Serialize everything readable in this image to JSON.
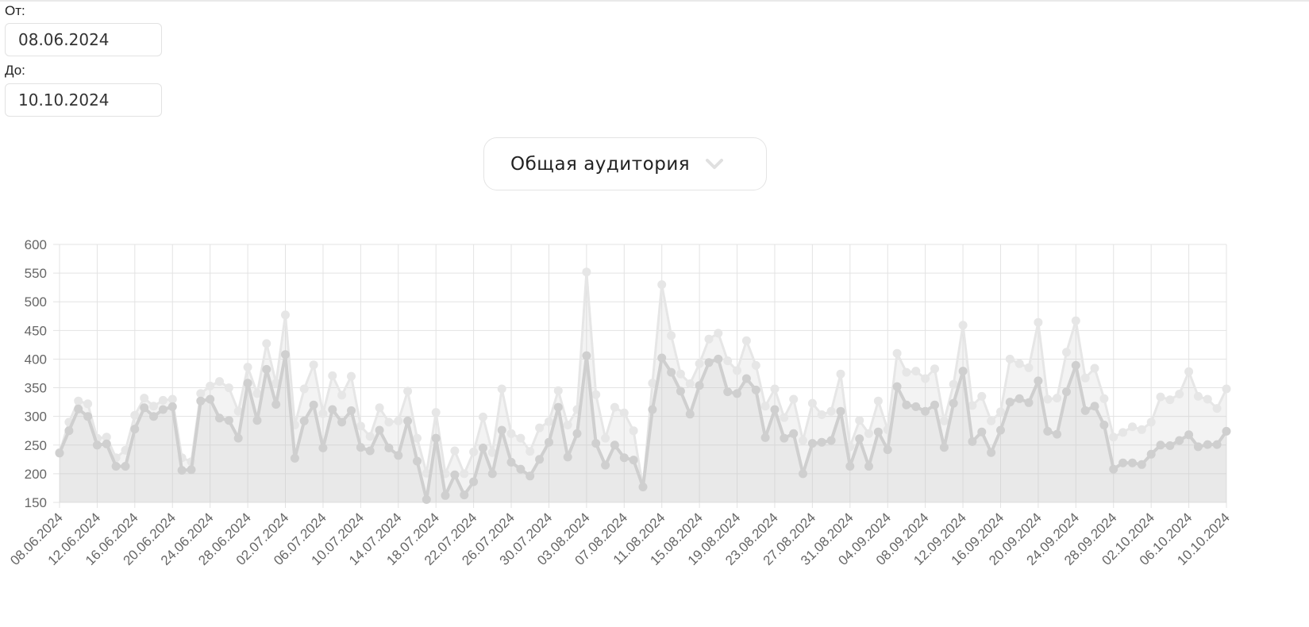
{
  "filters": {
    "from_label": "От:",
    "from_value": "08.06.2024",
    "to_label": "До:",
    "to_value": "10.10.2024"
  },
  "audience_select": {
    "selected": "Общая аудитория",
    "icon": "chevron-down-icon"
  },
  "chart_data": {
    "type": "area",
    "grid": true,
    "ylim": [
      150,
      600
    ],
    "yticks": [
      150,
      200,
      250,
      300,
      350,
      400,
      450,
      500,
      550,
      600
    ],
    "start_date": "2024-06-08",
    "xticks": [
      "08.06.2024",
      "12.06.2024",
      "16.06.2024",
      "20.06.2024",
      "24.06.2024",
      "28.06.2024",
      "02.07.2024",
      "06.07.2024",
      "10.07.2024",
      "14.07.2024",
      "18.07.2024",
      "22.07.2024",
      "26.07.2024",
      "30.07.2024",
      "03.08.2024",
      "07.08.2024",
      "11.08.2024",
      "15.08.2024",
      "19.08.2024",
      "23.08.2024",
      "27.08.2024",
      "31.08.2024",
      "04.09.2024",
      "08.09.2024",
      "12.09.2024",
      "16.09.2024",
      "20.09.2024",
      "24.09.2024",
      "28.09.2024",
      "02.10.2024",
      "06.10.2024",
      "10.10.2024"
    ],
    "series": [
      {
        "color": "#e6e6e6",
        "values": [
          237,
          290,
          327,
          322,
          262,
          264,
          228,
          241,
          302,
          332,
          318,
          328,
          330,
          228,
          221,
          340,
          353,
          361,
          350,
          309,
          386,
          340,
          427,
          358,
          477,
          285,
          348,
          390,
          305,
          371,
          337,
          370,
          283,
          265,
          315,
          290,
          292,
          344,
          262,
          201,
          307,
          200,
          240,
          200,
          238,
          299,
          237,
          348,
          270,
          262,
          239,
          280,
          291,
          345,
          285,
          312,
          552,
          338,
          262,
          316,
          306,
          275,
          176,
          358,
          530,
          441,
          374,
          357,
          392,
          435,
          445,
          397,
          380,
          432,
          389,
          318,
          348,
          298,
          330,
          258,
          323,
          303,
          309,
          374,
          247,
          293,
          270,
          327,
          277,
          410,
          377,
          379,
          366,
          383,
          292,
          356,
          459,
          319,
          335,
          292,
          308,
          400,
          392,
          385,
          464,
          330,
          332,
          412,
          467,
          367,
          384,
          331,
          264,
          272,
          282,
          277,
          290,
          334,
          329,
          339,
          378,
          335,
          330,
          314,
          348
        ]
      },
      {
        "color": "#cfcfcf",
        "values": [
          236,
          275,
          313,
          300,
          250,
          252,
          213,
          213,
          278,
          315,
          300,
          312,
          317,
          206,
          207,
          327,
          330,
          297,
          293,
          262,
          358,
          293,
          382,
          321,
          408,
          227,
          292,
          320,
          245,
          312,
          290,
          310,
          246,
          240,
          276,
          245,
          232,
          292,
          222,
          155,
          262,
          162,
          198,
          163,
          186,
          245,
          200,
          276,
          220,
          208,
          196,
          225,
          255,
          316,
          229,
          270,
          406,
          253,
          215,
          250,
          228,
          224,
          177,
          312,
          402,
          377,
          344,
          304,
          354,
          394,
          400,
          343,
          340,
          366,
          346,
          263,
          312,
          262,
          270,
          200,
          253,
          255,
          258,
          309,
          213,
          261,
          213,
          273,
          242,
          352,
          320,
          317,
          309,
          320,
          246,
          323,
          379,
          256,
          273,
          237,
          276,
          325,
          331,
          324,
          362,
          274,
          269,
          343,
          389,
          310,
          318,
          285,
          208,
          219,
          219,
          216,
          234,
          250,
          249,
          258,
          268,
          247,
          251,
          251,
          274
        ]
      }
    ]
  }
}
